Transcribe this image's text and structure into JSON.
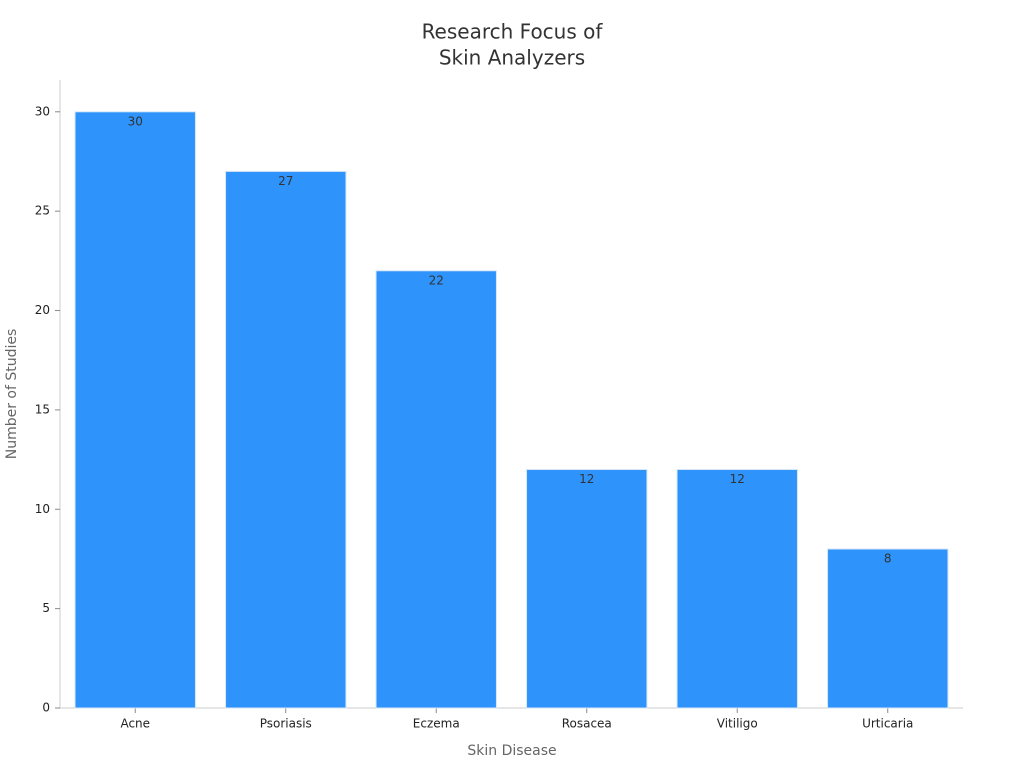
{
  "chart_data": {
    "type": "bar",
    "title": [
      "Research Focus of",
      "Skin Analyzers"
    ],
    "x_label": "Skin Disease",
    "y_label": "Number of Studies",
    "categories": [
      "Acne",
      "Psoriasis",
      "Eczema",
      "Rosacea",
      "Vitiligo",
      "Urticaria"
    ],
    "values": [
      30,
      27,
      22,
      12,
      12,
      8
    ],
    "color": "#2e93fa",
    "ylim": [
      0,
      31.6
    ],
    "yticks": [
      0,
      5,
      10,
      15,
      20,
      25,
      30
    ],
    "grid": false
  }
}
